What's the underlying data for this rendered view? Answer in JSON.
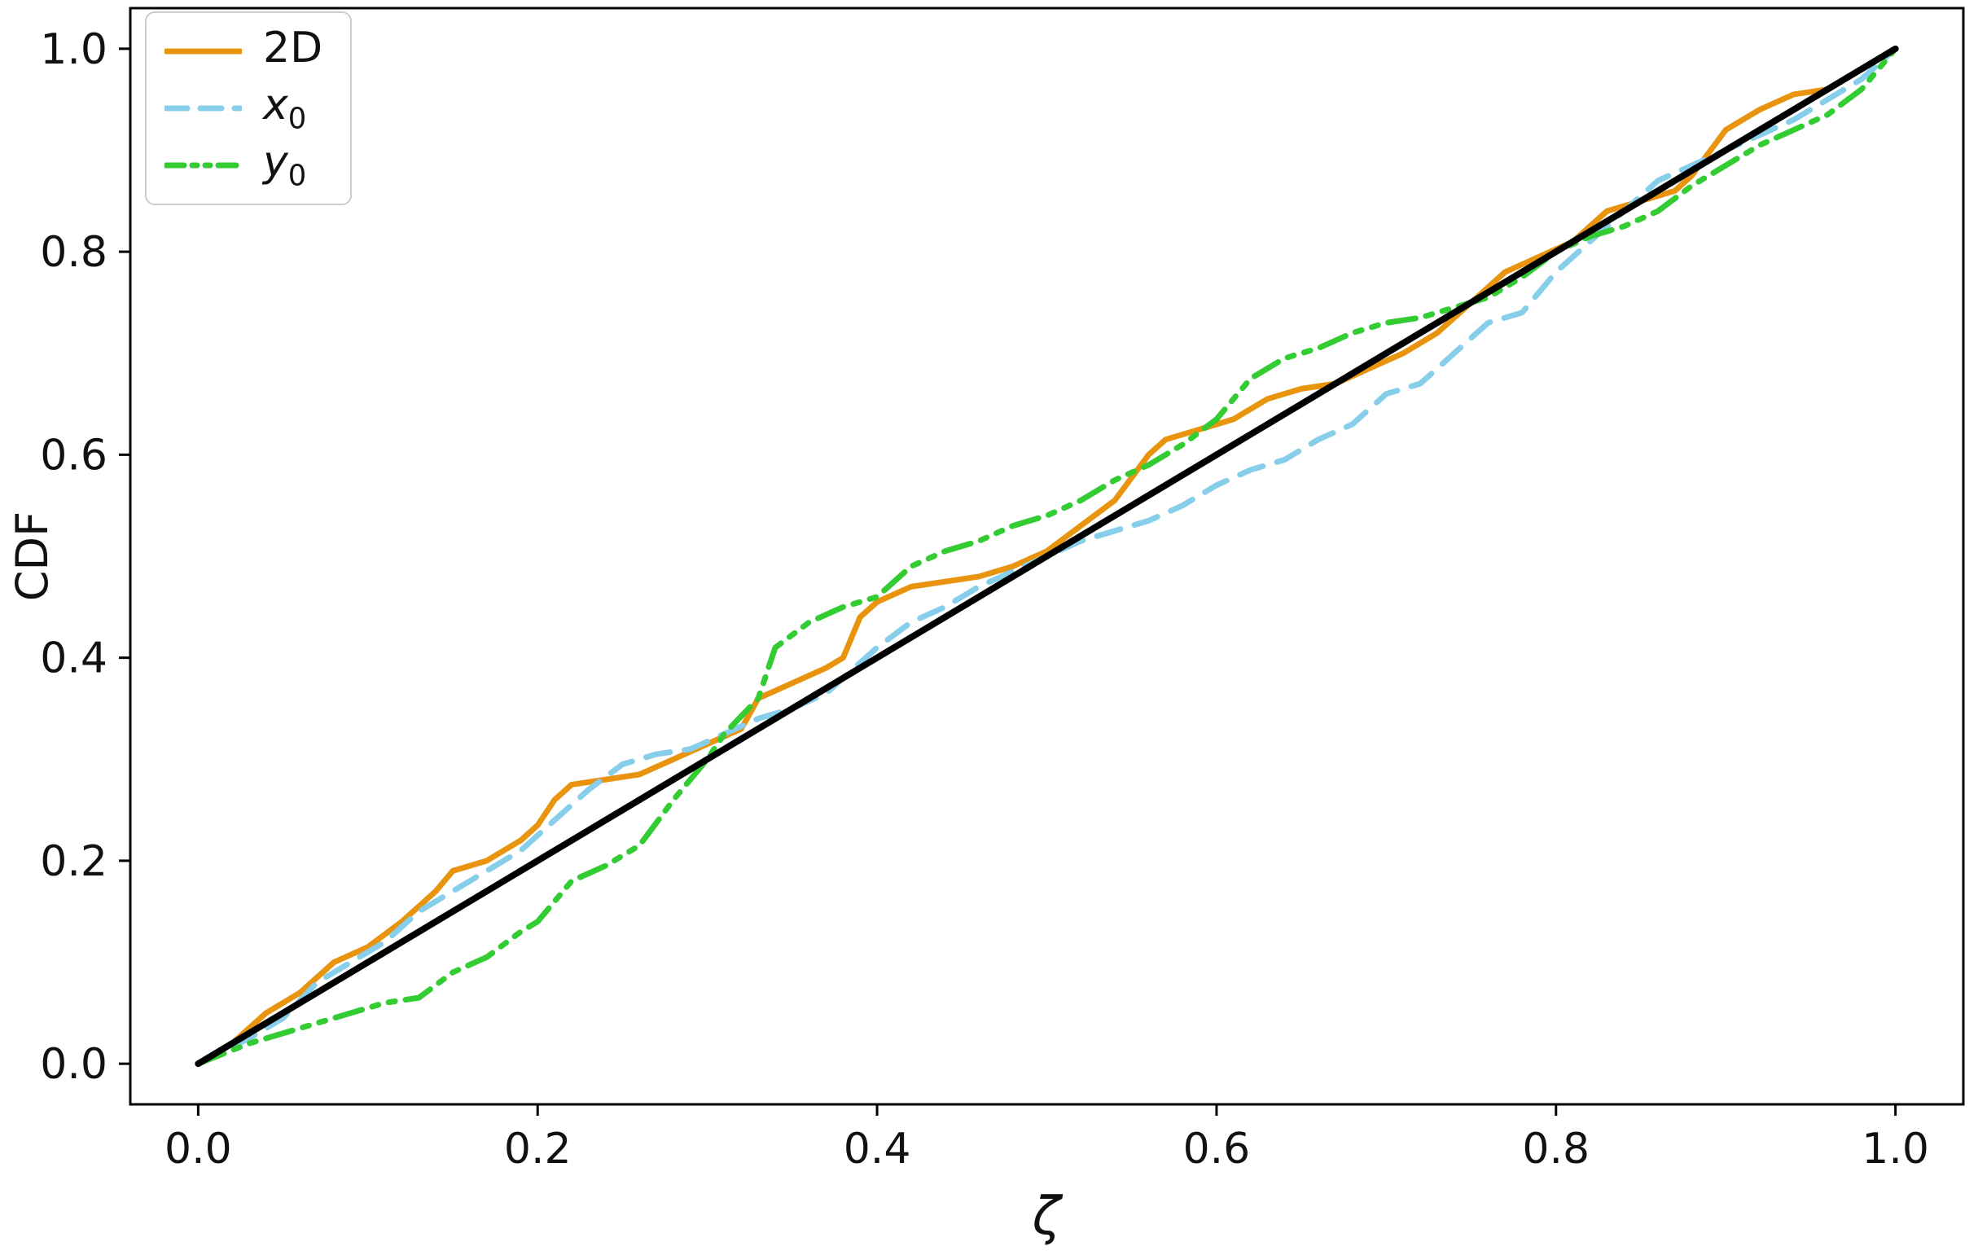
{
  "chart_data": {
    "type": "line",
    "title": "",
    "xlabel": "ζ",
    "ylabel": "CDF",
    "xlim": [
      -0.04,
      1.04
    ],
    "ylim": [
      -0.04,
      1.04
    ],
    "grid": false,
    "legend_position": "upper left",
    "xtick_values": [
      0.0,
      0.2,
      0.4,
      0.6,
      0.8,
      1.0
    ],
    "xtick_labels": [
      "0.0",
      "0.2",
      "0.4",
      "0.6",
      "0.8",
      "1.0"
    ],
    "ytick_values": [
      0.0,
      0.2,
      0.4,
      0.6,
      0.8,
      1.0
    ],
    "ytick_labels": [
      "0.0",
      "0.2",
      "0.4",
      "0.6",
      "0.8",
      "1.0"
    ],
    "reference_line": {
      "name": "diagonal",
      "color": "#000000",
      "style": "solid",
      "points": [
        [
          0,
          0
        ],
        [
          1,
          1
        ]
      ]
    },
    "series": [
      {
        "name": "2D",
        "color": "#e8940f",
        "style": "solid",
        "points": [
          [
            0.0,
            0.0
          ],
          [
            0.02,
            0.02
          ],
          [
            0.04,
            0.05
          ],
          [
            0.06,
            0.07
          ],
          [
            0.08,
            0.1
          ],
          [
            0.1,
            0.115
          ],
          [
            0.12,
            0.14
          ],
          [
            0.14,
            0.17
          ],
          [
            0.15,
            0.19
          ],
          [
            0.17,
            0.2
          ],
          [
            0.19,
            0.22
          ],
          [
            0.2,
            0.235
          ],
          [
            0.21,
            0.26
          ],
          [
            0.22,
            0.275
          ],
          [
            0.24,
            0.28
          ],
          [
            0.26,
            0.285
          ],
          [
            0.28,
            0.3
          ],
          [
            0.3,
            0.315
          ],
          [
            0.32,
            0.33
          ],
          [
            0.33,
            0.36
          ],
          [
            0.35,
            0.375
          ],
          [
            0.37,
            0.39
          ],
          [
            0.38,
            0.4
          ],
          [
            0.39,
            0.44
          ],
          [
            0.4,
            0.455
          ],
          [
            0.42,
            0.47
          ],
          [
            0.44,
            0.475
          ],
          [
            0.46,
            0.48
          ],
          [
            0.48,
            0.49
          ],
          [
            0.5,
            0.505
          ],
          [
            0.52,
            0.53
          ],
          [
            0.54,
            0.555
          ],
          [
            0.56,
            0.6
          ],
          [
            0.57,
            0.615
          ],
          [
            0.59,
            0.625
          ],
          [
            0.61,
            0.635
          ],
          [
            0.63,
            0.655
          ],
          [
            0.65,
            0.665
          ],
          [
            0.67,
            0.67
          ],
          [
            0.69,
            0.685
          ],
          [
            0.71,
            0.7
          ],
          [
            0.73,
            0.72
          ],
          [
            0.75,
            0.75
          ],
          [
            0.77,
            0.78
          ],
          [
            0.79,
            0.795
          ],
          [
            0.81,
            0.81
          ],
          [
            0.83,
            0.84
          ],
          [
            0.85,
            0.85
          ],
          [
            0.87,
            0.86
          ],
          [
            0.88,
            0.875
          ],
          [
            0.9,
            0.92
          ],
          [
            0.92,
            0.94
          ],
          [
            0.94,
            0.955
          ],
          [
            0.96,
            0.96
          ],
          [
            0.98,
            0.98
          ],
          [
            1.0,
            1.0
          ]
        ]
      },
      {
        "name": "x0",
        "color": "#87ceeb",
        "style": "dashed",
        "points": [
          [
            0.0,
            0.0
          ],
          [
            0.03,
            0.025
          ],
          [
            0.05,
            0.045
          ],
          [
            0.07,
            0.08
          ],
          [
            0.09,
            0.1
          ],
          [
            0.11,
            0.12
          ],
          [
            0.13,
            0.15
          ],
          [
            0.15,
            0.17
          ],
          [
            0.17,
            0.19
          ],
          [
            0.19,
            0.21
          ],
          [
            0.21,
            0.24
          ],
          [
            0.23,
            0.27
          ],
          [
            0.25,
            0.295
          ],
          [
            0.27,
            0.305
          ],
          [
            0.29,
            0.31
          ],
          [
            0.31,
            0.325
          ],
          [
            0.33,
            0.34
          ],
          [
            0.35,
            0.35
          ],
          [
            0.37,
            0.365
          ],
          [
            0.38,
            0.38
          ],
          [
            0.4,
            0.41
          ],
          [
            0.42,
            0.435
          ],
          [
            0.44,
            0.45
          ],
          [
            0.46,
            0.47
          ],
          [
            0.48,
            0.485
          ],
          [
            0.5,
            0.5
          ],
          [
            0.52,
            0.515
          ],
          [
            0.54,
            0.525
          ],
          [
            0.56,
            0.535
          ],
          [
            0.58,
            0.55
          ],
          [
            0.6,
            0.57
          ],
          [
            0.62,
            0.585
          ],
          [
            0.64,
            0.595
          ],
          [
            0.66,
            0.615
          ],
          [
            0.68,
            0.63
          ],
          [
            0.7,
            0.66
          ],
          [
            0.72,
            0.67
          ],
          [
            0.74,
            0.7
          ],
          [
            0.76,
            0.73
          ],
          [
            0.78,
            0.74
          ],
          [
            0.8,
            0.78
          ],
          [
            0.82,
            0.81
          ],
          [
            0.84,
            0.84
          ],
          [
            0.86,
            0.87
          ],
          [
            0.88,
            0.885
          ],
          [
            0.9,
            0.9
          ],
          [
            0.92,
            0.915
          ],
          [
            0.94,
            0.93
          ],
          [
            0.96,
            0.95
          ],
          [
            0.98,
            0.97
          ],
          [
            1.0,
            1.0
          ]
        ]
      },
      {
        "name": "y0",
        "color": "#33cc33",
        "style": "dashdotdot",
        "points": [
          [
            0.0,
            0.0
          ],
          [
            0.03,
            0.02
          ],
          [
            0.05,
            0.03
          ],
          [
            0.07,
            0.04
          ],
          [
            0.09,
            0.05
          ],
          [
            0.11,
            0.06
          ],
          [
            0.13,
            0.065
          ],
          [
            0.15,
            0.09
          ],
          [
            0.17,
            0.105
          ],
          [
            0.19,
            0.13
          ],
          [
            0.2,
            0.14
          ],
          [
            0.22,
            0.18
          ],
          [
            0.24,
            0.195
          ],
          [
            0.26,
            0.215
          ],
          [
            0.28,
            0.26
          ],
          [
            0.3,
            0.3
          ],
          [
            0.31,
            0.325
          ],
          [
            0.33,
            0.36
          ],
          [
            0.34,
            0.41
          ],
          [
            0.36,
            0.435
          ],
          [
            0.38,
            0.45
          ],
          [
            0.4,
            0.46
          ],
          [
            0.42,
            0.49
          ],
          [
            0.44,
            0.505
          ],
          [
            0.46,
            0.515
          ],
          [
            0.48,
            0.53
          ],
          [
            0.5,
            0.54
          ],
          [
            0.52,
            0.555
          ],
          [
            0.54,
            0.575
          ],
          [
            0.56,
            0.59
          ],
          [
            0.58,
            0.61
          ],
          [
            0.6,
            0.635
          ],
          [
            0.62,
            0.675
          ],
          [
            0.64,
            0.695
          ],
          [
            0.66,
            0.705
          ],
          [
            0.68,
            0.72
          ],
          [
            0.7,
            0.73
          ],
          [
            0.72,
            0.735
          ],
          [
            0.74,
            0.745
          ],
          [
            0.76,
            0.755
          ],
          [
            0.78,
            0.775
          ],
          [
            0.8,
            0.8
          ],
          [
            0.82,
            0.815
          ],
          [
            0.84,
            0.825
          ],
          [
            0.86,
            0.84
          ],
          [
            0.88,
            0.865
          ],
          [
            0.9,
            0.885
          ],
          [
            0.92,
            0.905
          ],
          [
            0.94,
            0.92
          ],
          [
            0.96,
            0.935
          ],
          [
            0.98,
            0.96
          ],
          [
            1.0,
            1.0
          ]
        ]
      }
    ]
  },
  "legend": {
    "items": [
      {
        "main": "2D",
        "sub": "",
        "italic": false
      },
      {
        "main": "x",
        "sub": "0",
        "italic": true
      },
      {
        "main": "y",
        "sub": "0",
        "italic": true
      }
    ]
  }
}
